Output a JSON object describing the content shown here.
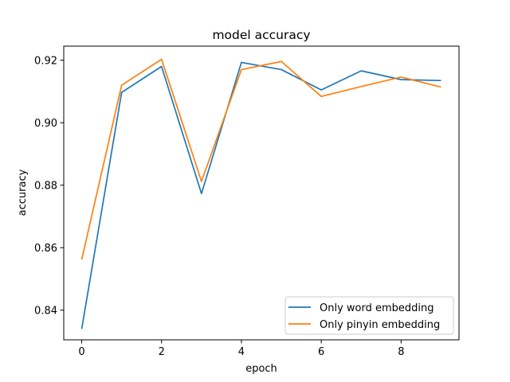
{
  "chart_data": {
    "type": "line",
    "title": "model accuracy",
    "xlabel": "epoch",
    "ylabel": "accuracy",
    "x": [
      0,
      1,
      2,
      3,
      4,
      5,
      6,
      7,
      8,
      9
    ],
    "xlim": [
      -0.45,
      9.45
    ],
    "ylim": [
      0.8305,
      0.9245
    ],
    "xticks": [
      0,
      2,
      4,
      6,
      8
    ],
    "yticks": [
      0.84,
      0.86,
      0.88,
      0.9,
      0.92
    ],
    "ytick_labels": [
      "0.84",
      "0.86",
      "0.88",
      "0.90",
      "0.92"
    ],
    "grid": false,
    "legend_position": "lower-right",
    "series": [
      {
        "name": "Only word embedding",
        "color": "#1f77b4",
        "values": [
          0.834,
          0.9097,
          0.918,
          0.8773,
          0.9193,
          0.917,
          0.9105,
          0.9166,
          0.9138,
          0.9135
        ]
      },
      {
        "name": "Only pinyin embedding",
        "color": "#ff7f0e",
        "values": [
          0.8562,
          0.912,
          0.9203,
          0.8812,
          0.917,
          0.9196,
          0.9084,
          0.9116,
          0.9146,
          0.9114
        ]
      }
    ]
  }
}
